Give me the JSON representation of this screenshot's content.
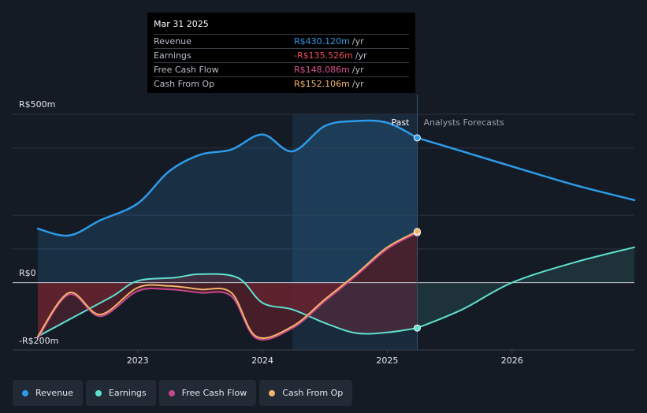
{
  "tooltip": {
    "date": "Mar 31 2025",
    "rows": [
      {
        "label": "Revenue",
        "value": "R$430.120m",
        "unit": "/yr",
        "color": "#2e9be8"
      },
      {
        "label": "Earnings",
        "value": "-R$135.526m",
        "unit": "/yr",
        "color": "#ef4a5a"
      },
      {
        "label": "Free Cash Flow",
        "value": "R$148.086m",
        "unit": "/yr",
        "color": "#e05094"
      },
      {
        "label": "Cash From Op",
        "value": "R$152.106m",
        "unit": "/yr",
        "color": "#f2b36a"
      }
    ]
  },
  "labels": {
    "past": "Past",
    "forecast": "Analysts Forecasts"
  },
  "legend": [
    {
      "label": "Revenue",
      "color": "#2e9be8"
    },
    {
      "label": "Earnings",
      "color": "#5fe0cf"
    },
    {
      "label": "Free Cash Flow",
      "color": "#c8468c"
    },
    {
      "label": "Cash From Op",
      "color": "#f2b36a"
    }
  ],
  "colors": {
    "background": "#151b25",
    "past_shade": "#1b2d42",
    "negative_fill": "#4a1f29",
    "revenue": "#2e9be8",
    "earnings": "#5fe0cf",
    "free_cash_flow": "#c8468c",
    "cash_from_op": "#f2b36a"
  },
  "chart_data": {
    "type": "line",
    "title": "",
    "xlabel": "",
    "ylabel": "",
    "unit": "R$m",
    "ylim": [
      -200,
      500
    ],
    "x_range": [
      2022.2,
      2026.98
    ],
    "past_until": 2025.24,
    "past_shade_from": 2024.24,
    "x_ticks": [
      {
        "value": 2023,
        "label": "2023"
      },
      {
        "value": 2024,
        "label": "2024"
      },
      {
        "value": 2025,
        "label": "2025"
      },
      {
        "value": 2026,
        "label": "2026"
      }
    ],
    "y_ticks": [
      {
        "value": 500,
        "label": "R$500m"
      },
      {
        "value": 0,
        "label": "R$0"
      },
      {
        "value": -200,
        "label": "-R$200m"
      }
    ],
    "series": [
      {
        "name": "Revenue",
        "key": "revenue",
        "x": [
          2022.2,
          2022.45,
          2022.7,
          2023.0,
          2023.25,
          2023.5,
          2023.75,
          2024.0,
          2024.24,
          2024.5,
          2024.75,
          2025.0,
          2025.24
        ],
        "y": [
          160,
          140,
          185,
          235,
          330,
          380,
          395,
          440,
          390,
          465,
          480,
          475,
          430
        ]
      },
      {
        "name": "Revenue forecast",
        "key": "revenue",
        "x": [
          2025.24,
          2025.6,
          2026.0,
          2026.5,
          2026.98
        ],
        "y": [
          430,
          390,
          345,
          290,
          245
        ]
      },
      {
        "name": "Earnings",
        "key": "earnings",
        "x": [
          2022.2,
          2022.5,
          2022.8,
          2023.0,
          2023.3,
          2023.5,
          2023.8,
          2024.0,
          2024.24,
          2024.5,
          2024.75,
          2025.0,
          2025.24
        ],
        "y": [
          -160,
          -100,
          -40,
          5,
          15,
          25,
          15,
          -60,
          -80,
          -120,
          -150,
          -148,
          -135
        ]
      },
      {
        "name": "Earnings forecast",
        "key": "earnings",
        "x": [
          2025.24,
          2025.6,
          2026.0,
          2026.5,
          2026.98
        ],
        "y": [
          -135,
          -80,
          0,
          60,
          105
        ]
      },
      {
        "name": "Free Cash Flow",
        "key": "free_cash_flow",
        "x": [
          2022.2,
          2022.45,
          2022.7,
          2023.0,
          2023.25,
          2023.5,
          2023.75,
          2023.95,
          2024.24,
          2024.5,
          2024.75,
          2025.0,
          2025.24
        ],
        "y": [
          -165,
          -35,
          -100,
          -25,
          -20,
          -30,
          -40,
          -165,
          -135,
          -55,
          20,
          100,
          148
        ]
      },
      {
        "name": "Cash From Op",
        "key": "cash_from_op",
        "x": [
          2022.2,
          2022.45,
          2022.7,
          2023.0,
          2023.25,
          2023.5,
          2023.75,
          2023.95,
          2024.24,
          2024.5,
          2024.75,
          2025.0,
          2025.24
        ],
        "y": [
          -160,
          -30,
          -95,
          -15,
          -10,
          -20,
          -30,
          -160,
          -130,
          -50,
          25,
          105,
          152
        ]
      }
    ],
    "highlight_points": [
      {
        "series": "Revenue",
        "x": 2025.24,
        "y": 430
      },
      {
        "series": "Earnings",
        "x": 2025.24,
        "y": -135
      },
      {
        "series": "Free Cash Flow",
        "x": 2025.24,
        "y": 148
      },
      {
        "series": "Cash From Op",
        "x": 2025.24,
        "y": 152
      }
    ]
  }
}
